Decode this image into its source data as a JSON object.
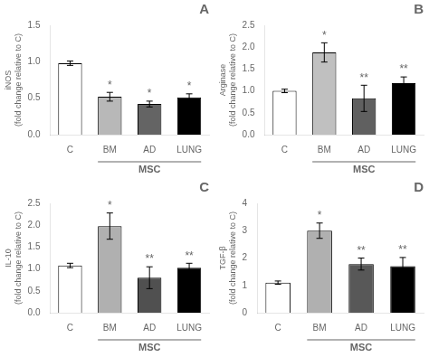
{
  "chart_data": [
    {
      "type": "bar",
      "title": "A",
      "ylabel": "iNOS\n(fold change relative to C)",
      "categories": [
        "C",
        "BM",
        "AD",
        "LUNG"
      ],
      "values": [
        0.98,
        0.52,
        0.42,
        0.51
      ],
      "errors": [
        0.03,
        0.06,
        0.04,
        0.05
      ],
      "colors": [
        "#ffffff",
        "#b8b8b8",
        "#646464",
        "#000000"
      ],
      "edge_color": "#000000",
      "error_color": "#000000",
      "ylim": [
        0,
        1.5
      ],
      "yticks": [
        {
          "value": 0,
          "label": "0.0"
        },
        0.5,
        {
          "value": 1,
          "label": "1.0"
        },
        1.5
      ],
      "grid": false,
      "annotations": [
        {
          "text": "*",
          "category": "BM"
        },
        {
          "text": "*",
          "category": "AD"
        },
        {
          "text": "*",
          "category": "LUNG"
        },
        {
          "text": "MSC",
          "categories": [
            "BM",
            "AD",
            "LUNG"
          ]
        }
      ]
    },
    {
      "type": "bar",
      "title": "B",
      "ylabel": "Arginase\n(fold change relative to C)",
      "categories": [
        "C",
        "BM",
        "AD",
        "LUNG"
      ],
      "values": [
        1.0,
        1.88,
        0.83,
        1.18
      ],
      "errors": [
        0.04,
        0.22,
        0.3,
        0.14
      ],
      "colors": [
        "#ffffff",
        "#c0c0c0",
        "#606060",
        "#000000"
      ],
      "edge_color": "#000000",
      "error_color": "#000000",
      "ylim": [
        0,
        2.5
      ],
      "yticks": [
        {
          "value": 0,
          "label": "0.0"
        },
        0.5,
        {
          "value": 1,
          "label": "1.0"
        },
        1.5,
        {
          "value": 2,
          "label": "2.0"
        },
        2.5
      ],
      "grid": false,
      "annotations": [
        {
          "text": "*",
          "category": "BM"
        },
        {
          "text": "**",
          "category": "AD"
        },
        {
          "text": "**",
          "category": "LUNG"
        },
        {
          "text": "MSC",
          "categories": [
            "BM",
            "AD",
            "LUNG"
          ]
        }
      ]
    },
    {
      "type": "bar",
      "title": "C",
      "ylabel": "IL-10\n(fold change relative to C)",
      "categories": [
        "C",
        "BM",
        "AD",
        "LUNG"
      ],
      "values": [
        1.08,
        1.98,
        0.8,
        1.03
      ],
      "errors": [
        0.05,
        0.3,
        0.25,
        0.1
      ],
      "colors": [
        "#ffffff",
        "#b0b0b0",
        "#505050",
        "#000000"
      ],
      "edge_color": "#000000",
      "error_color": "#000000",
      "ylim": [
        0,
        2.5
      ],
      "yticks": [
        {
          "value": 0,
          "label": "0.0"
        },
        0.5,
        {
          "value": 1,
          "label": "1.0"
        },
        1.5,
        {
          "value": 2,
          "label": "2.0"
        },
        2.5
      ],
      "grid": false,
      "annotations": [
        {
          "text": "*",
          "category": "BM"
        },
        {
          "text": "**",
          "category": "AD"
        },
        {
          "text": "**",
          "category": "LUNG"
        },
        {
          "text": "MSC",
          "categories": [
            "BM",
            "AD",
            "LUNG"
          ]
        }
      ]
    },
    {
      "type": "bar",
      "title": "D",
      "ylabel": "TGF-β\n(fold change relative to C)",
      "categories": [
        "C",
        "BM",
        "AD",
        "LUNG"
      ],
      "values": [
        1.1,
        3.0,
        1.78,
        1.7
      ],
      "errors": [
        0.06,
        0.28,
        0.22,
        0.32
      ],
      "colors": [
        "#ffffff",
        "#b0b0b0",
        "#585858",
        "#000000"
      ],
      "edge_color": "#000000",
      "error_color": "#000000",
      "ylim": [
        0,
        4.0
      ],
      "yticks": [
        0,
        1,
        2,
        3,
        4
      ],
      "grid": false,
      "annotations": [
        {
          "text": "*",
          "category": "BM"
        },
        {
          "text": "**",
          "category": "AD"
        },
        {
          "text": "**",
          "category": "LUNG"
        },
        {
          "text": "MSC",
          "categories": [
            "BM",
            "AD",
            "LUNG"
          ]
        }
      ]
    }
  ]
}
